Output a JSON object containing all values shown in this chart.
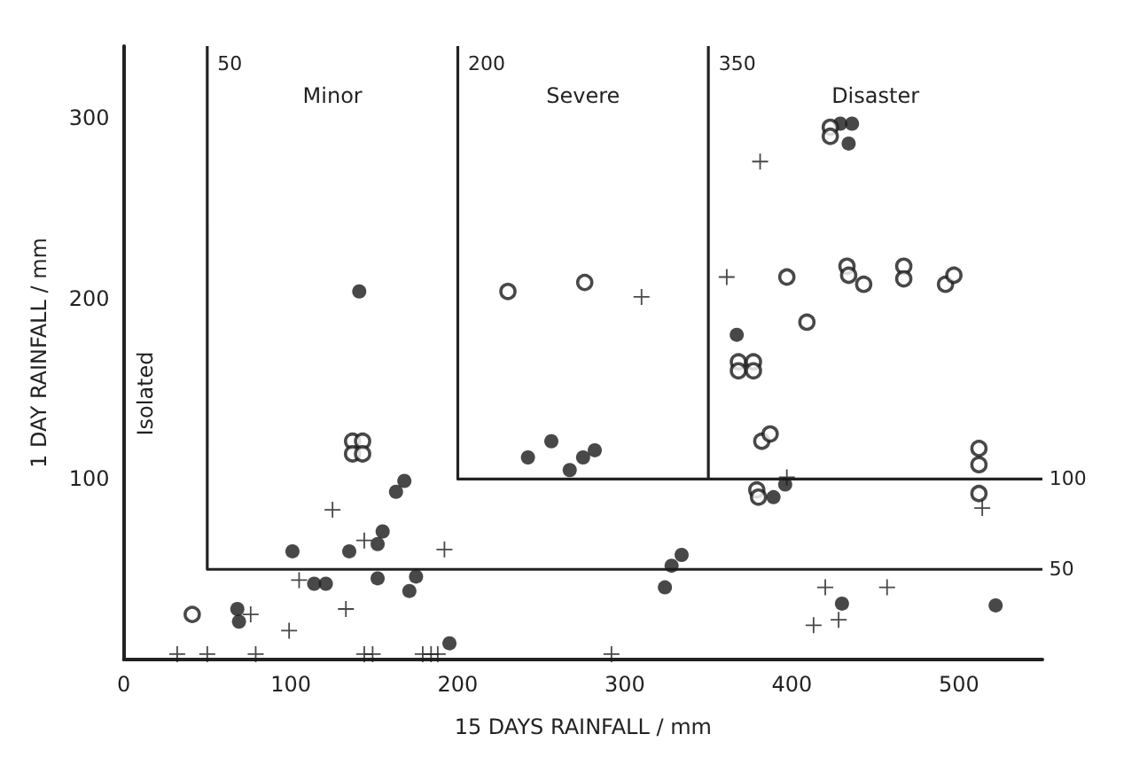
{
  "chart_data": {
    "type": "scatter",
    "xlabel": "15 DAYS RAINFALL / mm",
    "ylabel": "1 DAY RAINFALL / mm",
    "xlim": [
      0,
      550
    ],
    "ylim": [
      0,
      340
    ],
    "xticks": [
      0,
      100,
      200,
      300,
      400,
      500
    ],
    "yticks": [
      100,
      200,
      300
    ],
    "grid": false,
    "series": [
      {
        "marker": "circle",
        "color": "#1a1a1a",
        "x": [
          141,
          168,
          163,
          155,
          152,
          101,
          135,
          114,
          121,
          152,
          175,
          171,
          68,
          69,
          195,
          242,
          256,
          267,
          275,
          282,
          334,
          328,
          324,
          367,
          429,
          436,
          434,
          389,
          396,
          430,
          522
        ],
        "values": [
          204,
          99,
          93,
          71,
          64,
          60,
          60,
          42,
          42,
          45,
          46,
          38,
          28,
          21,
          9,
          112,
          121,
          105,
          112,
          116,
          58,
          52,
          40,
          180,
          297,
          297,
          286,
          90,
          97,
          31,
          30
        ]
      },
      {
        "marker": "circle",
        "color": "#1a1a1a",
        "x": [
          41,
          137,
          143,
          137,
          143,
          230,
          276,
          397,
          368,
          377,
          368,
          377,
          423,
          423,
          433,
          434,
          467,
          467,
          492,
          497,
          409,
          443,
          382,
          387,
          512,
          512,
          379,
          380,
          512
        ],
        "values": [
          25,
          121,
          121,
          114,
          114,
          204,
          209,
          212,
          165,
          165,
          160,
          160,
          295,
          290,
          218,
          213,
          218,
          211,
          208,
          213,
          187,
          208,
          121,
          125,
          117,
          108,
          94,
          90,
          92
        ]
      },
      {
        "marker": "cross",
        "color": "#1a1a1a",
        "x": [
          310,
          381,
          361,
          397,
          514,
          420,
          457,
          428,
          413,
          125,
          144,
          192,
          105,
          76,
          133,
          99,
          32,
          50,
          79,
          144,
          149,
          179,
          184,
          188,
          292
        ],
        "values": [
          201,
          276,
          212,
          101,
          84,
          40,
          40,
          22,
          19,
          83,
          66,
          61,
          44,
          25,
          28,
          16,
          3,
          3,
          3,
          3,
          3,
          3,
          3,
          3,
          3
        ]
      },
      {
        "type": "line",
        "line_style": "solid",
        "color": "#222222",
        "x": [
          50,
          50,
          550
        ],
        "values": [
          340,
          50,
          50
        ]
      },
      {
        "type": "line",
        "line_style": "solid",
        "color": "#222222",
        "x": [
          200,
          200,
          550
        ],
        "values": [
          340,
          100,
          100
        ]
      },
      {
        "type": "line",
        "line_style": "solid",
        "color": "#222222",
        "x": [
          350,
          350
        ],
        "values": [
          340,
          100
        ]
      }
    ],
    "annotations": [
      {
        "text": "50",
        "x": 54,
        "y": 330
      },
      {
        "text": "200",
        "x": 204,
        "y": 330
      },
      {
        "text": "350",
        "x": 354,
        "y": 330
      },
      "Minor",
      "Severe",
      "Disaster",
      {
        "text": "100",
        "x": 552,
        "y": 100
      },
      {
        "text": "50",
        "x": 552,
        "y": 50
      },
      "Isolated"
    ]
  }
}
